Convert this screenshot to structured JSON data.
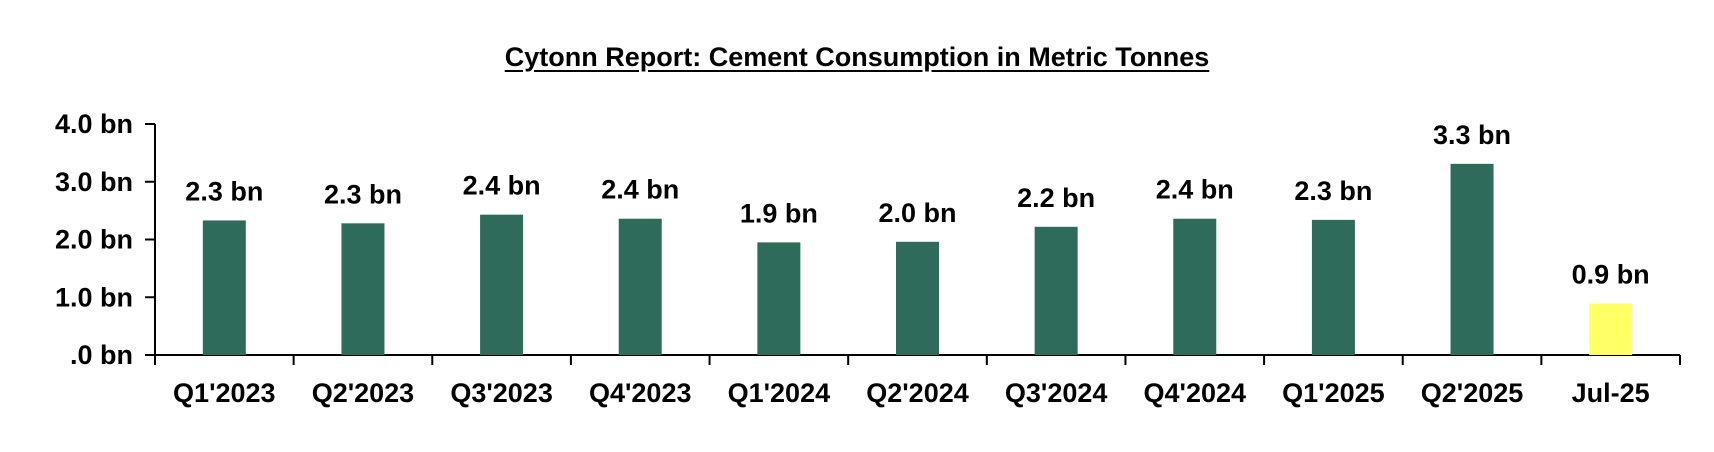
{
  "chart_data": {
    "type": "bar",
    "title": "Cytonn Report: Cement Consumption in Metric Tonnes",
    "xlabel": "",
    "ylabel": "",
    "categories": [
      "Q1'2023",
      "Q2'2023",
      "Q3'2023",
      "Q4'2023",
      "Q1'2024",
      "Q2'2024",
      "Q3'2024",
      "Q4'2024",
      "Q1'2025",
      "Q2'2025",
      "Jul-25"
    ],
    "values": [
      2.33,
      2.28,
      2.43,
      2.36,
      1.95,
      1.96,
      2.22,
      2.36,
      2.34,
      3.31,
      0.89
    ],
    "data_labels": [
      "2.3 bn",
      "2.3 bn",
      "2.4 bn",
      "2.4 bn",
      "1.9 bn",
      "2.0 bn",
      "2.2 bn",
      "2.4 bn",
      "2.3 bn",
      "3.3 bn",
      "0.9 bn"
    ],
    "bar_colors": [
      "#2e6b5a",
      "#2e6b5a",
      "#2e6b5a",
      "#2e6b5a",
      "#2e6b5a",
      "#2e6b5a",
      "#2e6b5a",
      "#2e6b5a",
      "#2e6b5a",
      "#2e6b5a",
      "#ffff66"
    ],
    "ylim": [
      0,
      4
    ],
    "yticks": [
      0,
      1,
      2,
      3,
      4
    ],
    "ytick_labels": [
      ".0 bn",
      "1.0 bn",
      "2.0 bn",
      "3.0 bn",
      "4.0 bn"
    ],
    "grid": false,
    "legend": false
  }
}
